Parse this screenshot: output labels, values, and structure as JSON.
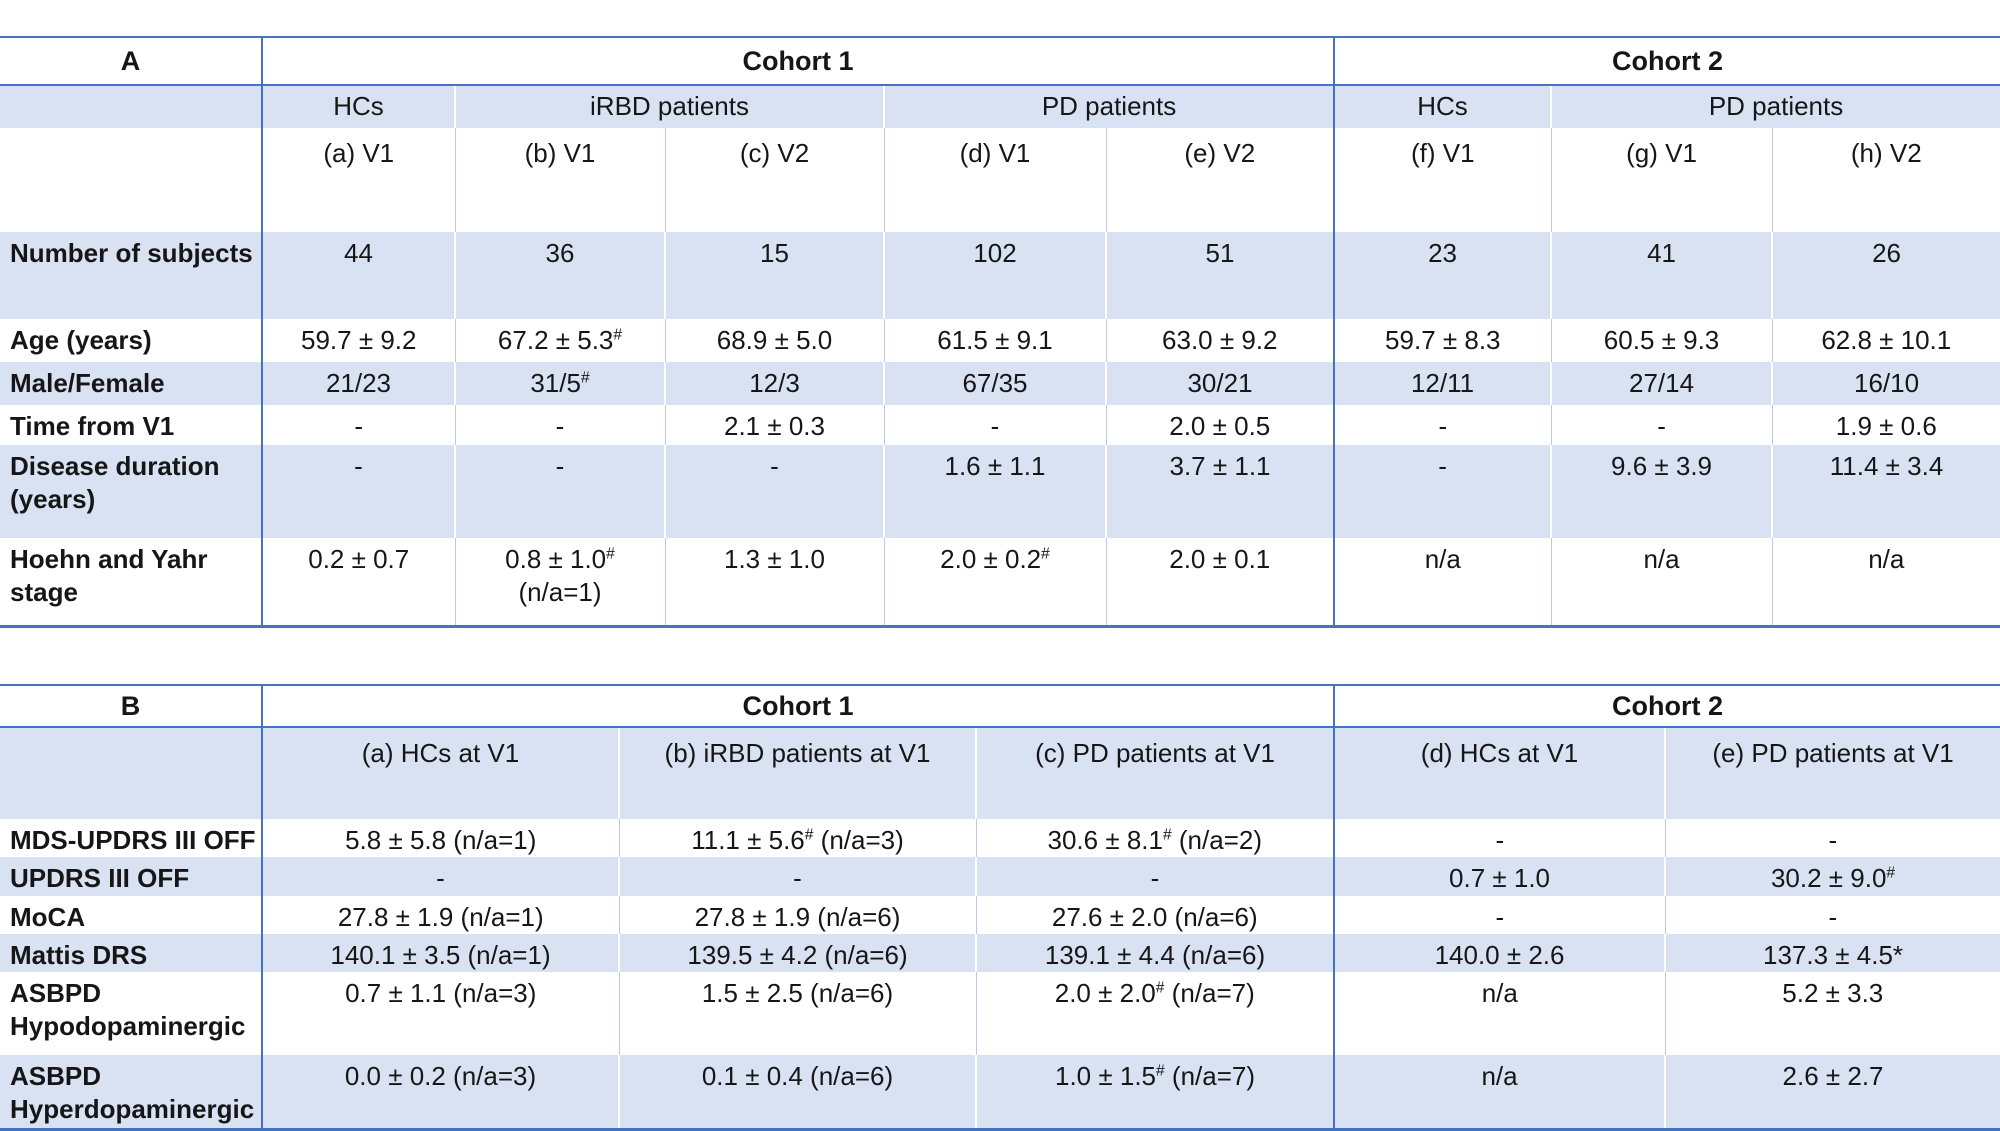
{
  "colors": {
    "band_blue": "#d9e2f3",
    "border_blue": "#4472c4",
    "grid_light": "#b9c9e9"
  },
  "table_a": {
    "corner": "A",
    "cohort_headers": [
      {
        "label": "Cohort 1",
        "cols": 5
      },
      {
        "label": "Cohort 2",
        "cols": 3
      }
    ],
    "group_headers": [
      {
        "label": "HCs",
        "cols": 1
      },
      {
        "label": "iRBD patients",
        "cols": 2
      },
      {
        "label": "PD patients",
        "cols": 2
      },
      {
        "label": "HCs",
        "cols": 1
      },
      {
        "label": "PD patients",
        "cols": 2
      }
    ],
    "visit_headers": [
      "(a) V1",
      "(b) V1",
      "(c) V2",
      "(d) V1",
      "(e) V2",
      "(f) V1",
      "(g) V1",
      "(h) V2"
    ],
    "rows": [
      {
        "label": "Number of subjects",
        "values": [
          "44",
          "36",
          "15",
          "102",
          "51",
          "23",
          "41",
          "26"
        ]
      },
      {
        "label": "Age (years)",
        "values": [
          "59.7 ± 9.2",
          "67.2 ± 5.3#",
          "68.9 ± 5.0",
          "61.5 ± 9.1",
          "63.0 ± 9.2",
          "59.7 ± 8.3",
          "60.5 ± 9.3",
          "62.8 ± 10.1"
        ]
      },
      {
        "label": "Male/Female",
        "values": [
          "21/23",
          "31/5#",
          "12/3",
          "67/35",
          "30/21",
          "12/11",
          "27/14",
          "16/10"
        ]
      },
      {
        "label": "Time from V1",
        "values": [
          "-",
          "-",
          "2.1 ± 0.3",
          "-",
          "2.0 ± 0.5",
          "-",
          "-",
          "1.9 ± 0.6"
        ]
      },
      {
        "label": "Disease duration\n(years)",
        "values": [
          "-",
          "-",
          "-",
          "1.6 ± 1.1",
          "3.7 ± 1.1",
          "-",
          "9.6 ± 3.9",
          "11.4 ± 3.4"
        ]
      },
      {
        "label": "Hoehn and Yahr\nstage",
        "values": [
          "0.2 ± 0.7",
          "0.8 ± 1.0#\n(n/a=1)",
          "1.3 ± 1.0",
          "2.0 ± 0.2#",
          "2.0 ± 0.1",
          "n/a",
          "n/a",
          "n/a"
        ]
      }
    ]
  },
  "table_b": {
    "corner": "B",
    "cohort_headers": [
      {
        "label": "Cohort 1",
        "cols": 3
      },
      {
        "label": "Cohort 2",
        "cols": 2
      }
    ],
    "visit_headers": [
      "(a) HCs at V1",
      "(b) iRBD patients at V1",
      "(c) PD patients at V1",
      "(d) HCs at V1",
      "(e) PD patients at V1"
    ],
    "rows": [
      {
        "label": "MDS-UPDRS III OFF",
        "values": [
          "5.8 ± 5.8 (n/a=1)",
          "11.1 ± 5.6# (n/a=3)",
          "30.6 ± 8.1# (n/a=2)",
          "-",
          "-"
        ]
      },
      {
        "label": "UPDRS III OFF",
        "values": [
          "-",
          "-",
          "-",
          "0.7 ± 1.0",
          "30.2 ± 9.0#"
        ]
      },
      {
        "label": "MoCA",
        "values": [
          "27.8 ± 1.9 (n/a=1)",
          "27.8 ± 1.9 (n/a=6)",
          "27.6 ± 2.0 (n/a=6)",
          "-",
          "-"
        ]
      },
      {
        "label": "Mattis DRS",
        "values": [
          "140.1 ± 3.5 (n/a=1)",
          "139.5 ± 4.2 (n/a=6)",
          "139.1 ± 4.4 (n/a=6)",
          "140.0 ± 2.6",
          "137.3 ± 4.5*"
        ]
      },
      {
        "label": "ASBPD\nHypodopaminergic",
        "values": [
          "0.7 ± 1.1 (n/a=3)",
          "1.5 ± 2.5 (n/a=6)",
          "2.0 ± 2.0# (n/a=7)",
          "n/a",
          "5.2 ± 3.3"
        ]
      },
      {
        "label": "ASBPD\nHyperdopaminergic",
        "values": [
          "0.0 ± 0.2 (n/a=3)",
          "0.1 ± 0.4 (n/a=6)",
          "1.0 ± 1.5# (n/a=7)",
          "n/a",
          "2.6 ± 2.7"
        ]
      }
    ]
  }
}
